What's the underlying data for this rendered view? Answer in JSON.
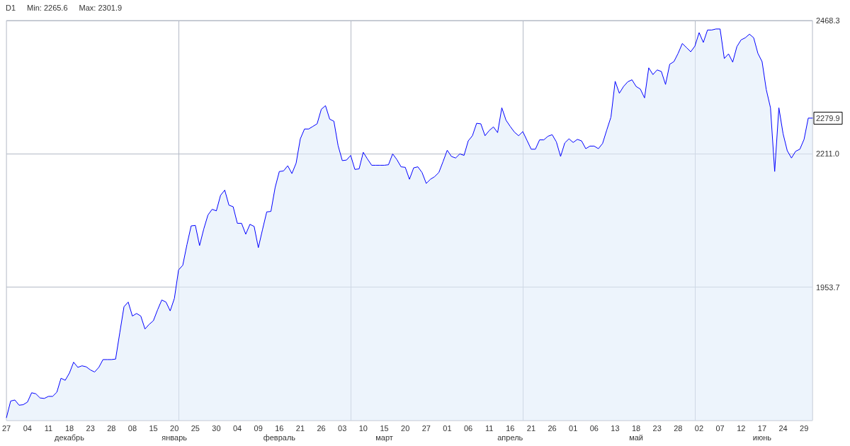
{
  "chart_data": {
    "type": "area",
    "title": "D1",
    "annotations": [
      "Min: 2265.6",
      "Max: 2301.9",
      {
        "text": "2279.9",
        "y": 2279.9
      }
    ],
    "categories": [
      "27",
      null,
      null,
      null,
      null,
      "04",
      null,
      null,
      null,
      null,
      "11",
      null,
      null,
      null,
      null,
      "18\nдекабрь",
      null,
      null,
      null,
      null,
      "23",
      null,
      null,
      null,
      null,
      "28",
      null,
      null,
      null,
      null,
      "08",
      null,
      null,
      null,
      null,
      "15",
      null,
      null,
      null,
      null,
      "20\nянварь",
      null,
      null,
      null,
      null,
      "25",
      null,
      null,
      null,
      null,
      "30",
      null,
      null,
      null,
      null,
      "04",
      null,
      null,
      null,
      null,
      "09",
      null,
      null,
      null,
      null,
      "16\nфевраль",
      null,
      null,
      null,
      null,
      "21",
      null,
      null,
      null,
      null,
      "26",
      null,
      null,
      null,
      null,
      "03",
      null,
      null,
      null,
      null,
      "10",
      null,
      null,
      null,
      null,
      "15\nмарт",
      null,
      null,
      null,
      null,
      "20",
      null,
      null,
      null,
      null,
      "27",
      null,
      null,
      null,
      null,
      "01",
      null,
      null,
      null,
      null,
      "06",
      null,
      null,
      null,
      null,
      "11",
      null,
      null,
      null,
      null,
      "16\nапрель",
      null,
      null,
      null,
      null,
      "21",
      null,
      null,
      null,
      null,
      "26",
      null,
      null,
      null,
      null,
      "01",
      null,
      null,
      null,
      null,
      "06",
      null,
      null,
      null,
      null,
      "13",
      null,
      null,
      null,
      null,
      "18\nмай",
      null,
      null,
      null,
      null,
      "23",
      null,
      null,
      null,
      null,
      "28",
      null,
      null,
      null,
      null,
      "02",
      null,
      null,
      null,
      null,
      "07",
      null,
      null,
      null,
      null,
      "12",
      null,
      null,
      null,
      null,
      "17\nиюнь",
      null,
      null,
      null,
      null,
      "24",
      null,
      null,
      null,
      null,
      "29",
      null,
      null
    ],
    "values": [
      1702,
      1734,
      1736,
      1726,
      1727,
      1732,
      1750,
      1748,
      1740,
      1739,
      1743,
      1743,
      1751,
      1778,
      1774,
      1788,
      1809,
      1799,
      1802,
      1800,
      1794,
      1790,
      1799,
      1814,
      1814,
      1814,
      1815,
      1866,
      1916,
      1925,
      1898,
      1903,
      1898,
      1873,
      1882,
      1889,
      1910,
      1929,
      1925,
      1908,
      1932,
      1987,
      1996,
      2036,
      2072,
      2073,
      2034,
      2066,
      2093,
      2104,
      2101,
      2131,
      2141,
      2112,
      2109,
      2077,
      2077,
      2056,
      2075,
      2071,
      2030,
      2065,
      2099,
      2100,
      2146,
      2177,
      2178,
      2188,
      2173,
      2193,
      2240,
      2259,
      2259,
      2264,
      2269,
      2297,
      2304,
      2278,
      2274,
      2227,
      2198,
      2199,
      2208,
      2181,
      2182,
      2214,
      2201,
      2189,
      2189,
      2189,
      2189,
      2190,
      2211,
      2200,
      2186,
      2185,
      2162,
      2184,
      2186,
      2175,
      2154,
      2162,
      2167,
      2175,
      2196,
      2218,
      2206,
      2203,
      2211,
      2208,
      2236,
      2246,
      2270,
      2269,
      2246,
      2256,
      2263,
      2252,
      2300,
      2276,
      2264,
      2253,
      2246,
      2254,
      2237,
      2220,
      2220,
      2238,
      2238,
      2245,
      2248,
      2234,
      2206,
      2232,
      2240,
      2233,
      2239,
      2236,
      2221,
      2226,
      2226,
      2221,
      2231,
      2257,
      2282,
      2351,
      2328,
      2341,
      2350,
      2354,
      2341,
      2336,
      2319,
      2377,
      2364,
      2373,
      2370,
      2345,
      2384,
      2389,
      2405,
      2424,
      2416,
      2408,
      2419,
      2445,
      2426,
      2450,
      2450,
      2452,
      2452,
      2395,
      2404,
      2388,
      2418,
      2431,
      2435,
      2442,
      2435,
      2405,
      2389,
      2335,
      2300,
      2177,
      2300,
      2250,
      2217,
      2203,
      2216,
      2220,
      2239,
      2280,
      2279.9
    ],
    "color": "#0000ff",
    "ylim": [
      1696.4,
      2468.3
    ],
    "yticks": [
      1953.7,
      {
        "value": 2211,
        "label": "2211.0"
      },
      2468.3
    ],
    "grid": true
  }
}
